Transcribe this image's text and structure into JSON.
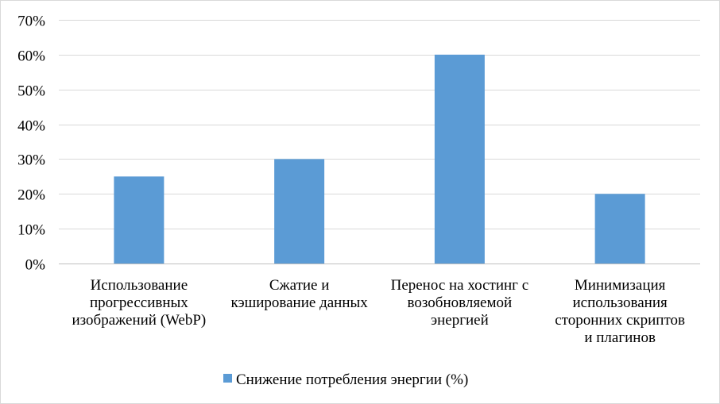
{
  "chart_data": {
    "type": "bar",
    "title": "",
    "xlabel": "",
    "ylabel": "",
    "categories": [
      "Использование прогрессивных изображений (WebP)",
      "Сжатие и кэширование данных",
      "Перенос на хостинг с возобновляемой энергией",
      "Минимизация использования сторонних скриптов и плагинов"
    ],
    "category_label_lines": [
      [
        "Использование",
        "прогрессивных",
        "изображений (WebP)"
      ],
      [
        "Сжатие и",
        "кэширование данных"
      ],
      [
        "Перенос на хостинг с",
        "возобновляемой",
        "энергией"
      ],
      [
        "Минимизация",
        "использования",
        "сторонних скриптов",
        "и плагинов"
      ]
    ],
    "series": [
      {
        "name": "Снижение потребления энергии (%)",
        "values": [
          25,
          30,
          60,
          20
        ],
        "color": "#5b9bd5"
      }
    ],
    "ylim": [
      0,
      70
    ],
    "yticks": [
      0,
      10,
      20,
      30,
      40,
      50,
      60,
      70
    ],
    "ytick_labels": [
      "0%",
      "10%",
      "20%",
      "30%",
      "40%",
      "50%",
      "60%",
      "70%"
    ],
    "grid": true,
    "legend_position": "bottom-center"
  },
  "colors": {
    "bar": "#5b9bd5",
    "grid": "#d9d9d9",
    "axis": "#bfbfbf"
  }
}
